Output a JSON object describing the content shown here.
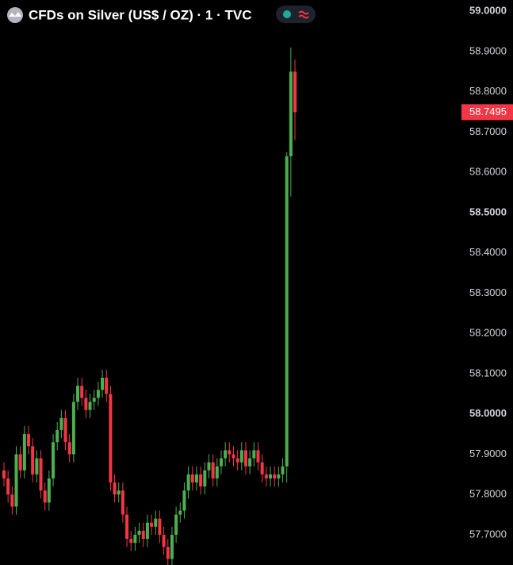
{
  "chart_data": {
    "type": "candlestick",
    "title": "CFDs on Silver (US$ / OZ) · 1 · TVC",
    "up_color": "#4caf50",
    "down_color": "#f23645",
    "open": [
      57.86,
      57.84,
      57.8,
      57.77,
      57.9,
      57.86,
      57.95,
      57.92,
      57.85,
      57.89,
      57.81,
      57.78,
      57.84,
      57.93,
      57.96,
      57.99,
      57.93,
      57.9,
      58.03,
      58.07,
      58.04,
      58.01,
      58.03,
      58.04,
      58.06,
      58.09,
      58.05,
      57.83,
      57.8,
      57.81,
      57.75,
      57.69,
      57.68,
      57.7,
      57.71,
      57.69,
      57.73,
      57.72,
      57.74,
      57.7,
      57.67,
      57.64,
      57.7,
      57.75,
      57.76,
      57.81,
      57.85,
      57.83,
      57.85,
      57.82,
      57.86,
      57.88,
      57.84,
      57.87,
      57.89,
      57.91,
      57.9,
      57.89,
      57.88,
      57.91,
      57.87,
      57.89,
      57.91,
      57.88,
      57.85,
      57.84,
      57.85,
      57.84,
      57.85,
      57.87,
      58.64,
      58.85
    ],
    "high": [
      57.88,
      57.86,
      57.82,
      57.92,
      57.92,
      57.97,
      57.97,
      57.94,
      57.91,
      57.91,
      57.83,
      57.86,
      57.95,
      57.98,
      58.01,
      58.01,
      57.95,
      58.05,
      58.09,
      58.09,
      58.06,
      58.05,
      58.06,
      58.08,
      58.11,
      58.11,
      58.07,
      57.85,
      57.83,
      57.83,
      57.77,
      57.71,
      57.72,
      57.73,
      57.73,
      57.75,
      57.75,
      57.76,
      57.76,
      57.72,
      57.69,
      57.72,
      57.77,
      57.78,
      57.83,
      57.87,
      57.87,
      57.87,
      57.87,
      57.88,
      57.9,
      57.9,
      57.89,
      57.91,
      57.93,
      57.93,
      57.92,
      57.91,
      57.93,
      57.93,
      57.91,
      57.93,
      57.93,
      57.9,
      57.87,
      57.87,
      57.87,
      57.87,
      57.89,
      58.65,
      58.91,
      58.88
    ],
    "low": [
      57.82,
      57.78,
      57.75,
      57.75,
      57.84,
      57.84,
      57.9,
      57.83,
      57.83,
      57.79,
      57.76,
      57.76,
      57.82,
      57.91,
      57.94,
      57.91,
      57.88,
      57.88,
      58.01,
      58.02,
      57.99,
      57.99,
      58.01,
      58.02,
      58.04,
      58.03,
      57.81,
      57.78,
      57.78,
      57.73,
      57.67,
      57.66,
      57.66,
      57.68,
      57.67,
      57.67,
      57.7,
      57.7,
      57.68,
      57.65,
      57.62,
      57.62,
      57.68,
      57.73,
      57.74,
      57.79,
      57.81,
      57.81,
      57.8,
      57.8,
      57.84,
      57.82,
      57.82,
      57.85,
      57.87,
      57.88,
      57.87,
      57.86,
      57.86,
      57.85,
      57.85,
      57.87,
      57.86,
      57.83,
      57.82,
      57.82,
      57.82,
      57.82,
      57.83,
      57.83,
      58.54,
      58.68
    ],
    "close": [
      57.84,
      57.8,
      57.77,
      57.9,
      57.86,
      57.95,
      57.92,
      57.85,
      57.89,
      57.81,
      57.78,
      57.84,
      57.93,
      57.96,
      57.99,
      57.93,
      57.9,
      58.03,
      58.07,
      58.04,
      58.01,
      58.03,
      58.04,
      58.06,
      58.09,
      58.05,
      57.83,
      57.8,
      57.81,
      57.75,
      57.69,
      57.68,
      57.7,
      57.71,
      57.69,
      57.73,
      57.72,
      57.74,
      57.7,
      57.67,
      57.64,
      57.7,
      57.75,
      57.76,
      57.81,
      57.85,
      57.83,
      57.85,
      57.82,
      57.86,
      57.88,
      57.84,
      57.87,
      57.89,
      57.91,
      57.9,
      57.89,
      57.88,
      57.91,
      57.87,
      57.89,
      57.91,
      57.88,
      57.85,
      57.84,
      57.85,
      57.84,
      57.85,
      57.87,
      58.64,
      58.85,
      58.7495
    ],
    "ylim": [
      57.625,
      59.028
    ],
    "yticks": [
      {
        "value": 57.7,
        "label": "57.7000"
      },
      {
        "value": 57.8,
        "label": "57.8000"
      },
      {
        "value": 57.9,
        "label": "57.9000"
      },
      {
        "value": 58.0,
        "label": "58.0000"
      },
      {
        "value": 58.1,
        "label": "58.1000"
      },
      {
        "value": 58.2,
        "label": "58.2000"
      },
      {
        "value": 58.3,
        "label": "58.3000"
      },
      {
        "value": 58.4,
        "label": "58.4000"
      },
      {
        "value": 58.5,
        "label": "58.5000"
      },
      {
        "value": 58.6,
        "label": "58.6000"
      },
      {
        "value": 58.7,
        "label": "58.7000"
      },
      {
        "value": 58.8,
        "label": "58.8000"
      },
      {
        "value": 58.9,
        "label": "58.9000"
      },
      {
        "value": 59.0,
        "label": "59.0000"
      }
    ]
  }
}
